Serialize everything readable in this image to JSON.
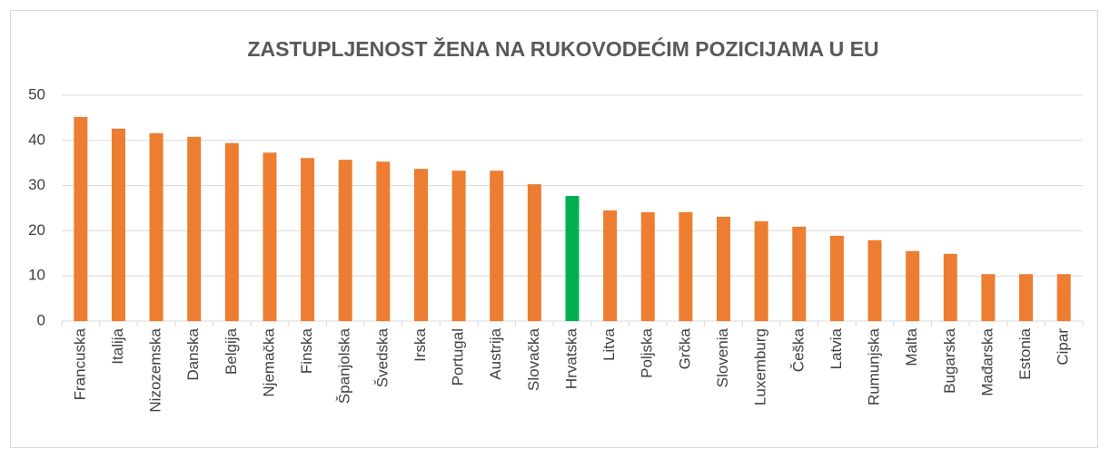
{
  "chart_data": {
    "type": "bar",
    "title": "ZASTUPLJENOST ŽENA NA RUKOVODEĆIM POZICIJAMA U EU",
    "categories": [
      "Francuska",
      "Italija",
      "Nizozemska",
      "Danska",
      "Belgija",
      "Njemačka",
      "Finska",
      "Španjolska",
      "Švedska",
      "Irska",
      "Portugal",
      "Austrija",
      "Slovačka",
      "Hrvatska",
      "Litva",
      "Poljska",
      "Grčka",
      "Slovenia",
      "Luxemburg",
      "Češka",
      "Latvia",
      "Rumunjska",
      "Malta",
      "Bugarska",
      "Mađarska",
      "Estonia",
      "Cipar"
    ],
    "values": [
      45.2,
      42.6,
      41.6,
      40.8,
      39.4,
      37.3,
      36.1,
      35.7,
      35.3,
      33.7,
      33.3,
      33.3,
      30.3,
      27.7,
      24.5,
      24.1,
      24.1,
      23.1,
      22.1,
      20.9,
      18.9,
      17.9,
      15.5,
      14.9,
      10.4,
      10.4,
      10.4
    ],
    "colors": [
      "#ed7d31",
      "#ed7d31",
      "#ed7d31",
      "#ed7d31",
      "#ed7d31",
      "#ed7d31",
      "#ed7d31",
      "#ed7d31",
      "#ed7d31",
      "#ed7d31",
      "#ed7d31",
      "#ed7d31",
      "#ed7d31",
      "#00b050",
      "#ed7d31",
      "#ed7d31",
      "#ed7d31",
      "#ed7d31",
      "#ed7d31",
      "#ed7d31",
      "#ed7d31",
      "#ed7d31",
      "#ed7d31",
      "#ed7d31",
      "#ed7d31",
      "#ed7d31",
      "#ed7d31"
    ],
    "ylim": [
      0,
      50
    ],
    "yticks": [
      0,
      10,
      20,
      30,
      40,
      50
    ],
    "grid": true
  }
}
